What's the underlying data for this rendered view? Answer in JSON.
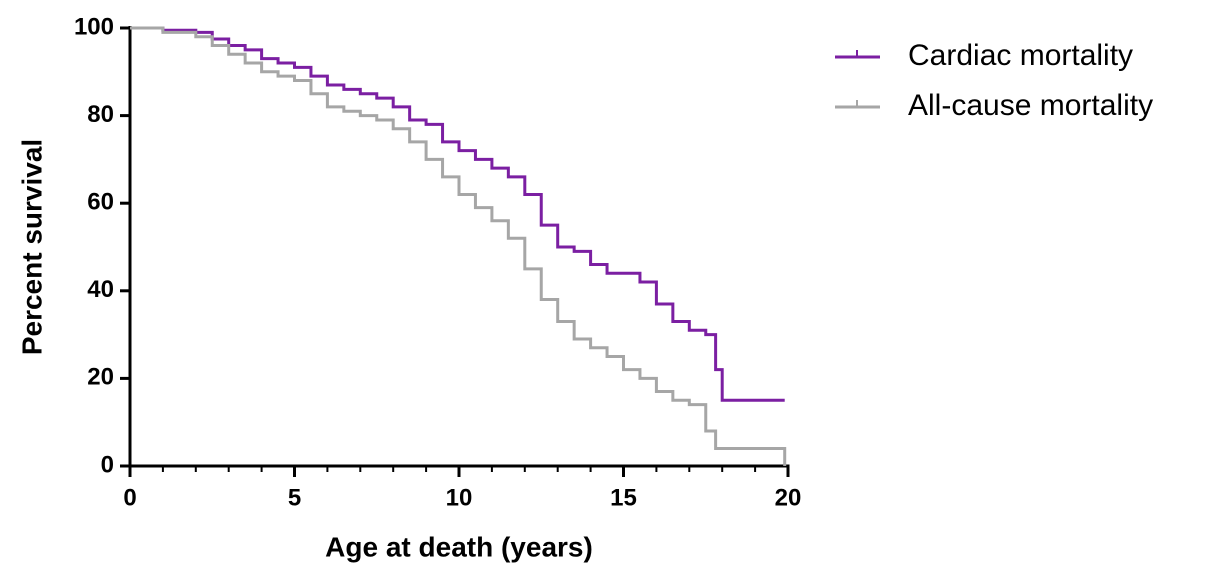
{
  "chart_data": {
    "type": "line",
    "step": true,
    "x_label": "Age at death (years)",
    "y_label": "Percent survival",
    "x": [
      0,
      1,
      2,
      2.5,
      3,
      3.5,
      4,
      4.5,
      5,
      5.5,
      6,
      6.5,
      7,
      7.5,
      8,
      8.5,
      9,
      9.5,
      10,
      10.5,
      11,
      11.5,
      12,
      12.5,
      13,
      13.5,
      14,
      14.5,
      15,
      15.5,
      16,
      16.5,
      17,
      17.5,
      17.8,
      18,
      18.5,
      19,
      19.8,
      19.9
    ],
    "series": [
      {
        "name": "Cardiac mortality",
        "color": "#7b1fa2",
        "values": [
          100,
          99.5,
          99,
          97.5,
          96,
          95,
          93,
          92,
          91,
          89,
          87,
          86,
          85,
          84,
          82,
          79,
          78,
          74,
          72,
          70,
          68,
          66,
          62,
          55,
          50,
          49,
          46,
          44,
          44,
          42,
          37,
          33,
          31,
          30,
          22,
          15,
          15,
          15,
          15,
          15
        ]
      },
      {
        "name": "All-cause mortality",
        "color": "#a6a6a6",
        "values": [
          100,
          99,
          98,
          96,
          94,
          92,
          90,
          89,
          88,
          85,
          82,
          81,
          80,
          79,
          77,
          74,
          70,
          66,
          62,
          59,
          56,
          52,
          45,
          38,
          33,
          29,
          27,
          25,
          22,
          20,
          17,
          15,
          14,
          8,
          4,
          4,
          4,
          4,
          4,
          0
        ]
      }
    ],
    "xlim": [
      0,
      20
    ],
    "xticks": [
      0,
      5,
      10,
      15,
      20
    ],
    "ylim": [
      0,
      100
    ],
    "yticks": [
      0,
      20,
      40,
      60,
      80,
      100
    ],
    "legend": "right"
  }
}
